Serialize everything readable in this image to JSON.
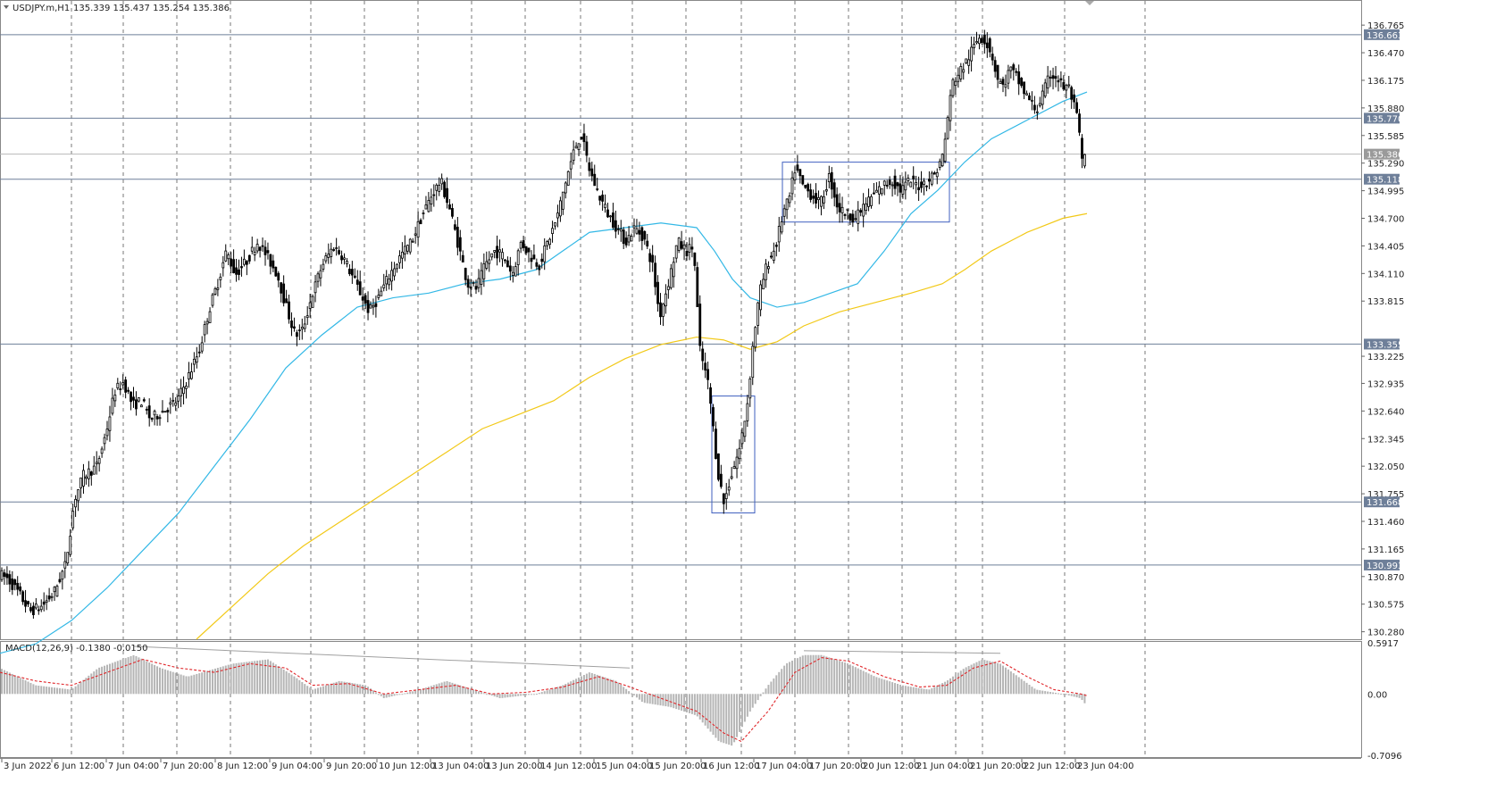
{
  "header": {
    "symbol": "USDJPY.m,H1",
    "ohlc": "135.339 135.437 135.254 135.386"
  },
  "macd_header": "MACD(12,26,9) -0.1380 -0.0150",
  "chart_data": {
    "type": "candlestick",
    "timeframe": "H1",
    "price_axis": {
      "range": [
        130.2,
        136.9
      ],
      "ticks": [
        "136.765",
        "136.470",
        "136.175",
        "135.880",
        "135.585",
        "135.290",
        "134.995",
        "134.700",
        "134.405",
        "134.110",
        "133.815",
        "133.225",
        "132.935",
        "132.640",
        "132.345",
        "132.050",
        "131.755",
        "131.460",
        "131.165",
        "130.870",
        "130.575",
        "130.280"
      ]
    },
    "time_labels": [
      "3 Jun 2022",
      "6 Jun 12:00",
      "7 Jun 04:00",
      "7 Jun 20:00",
      "8 Jun 12:00",
      "9 Jun 04:00",
      "9 Jun 20:00",
      "10 Jun 12:00",
      "13 Jun 04:00",
      "13 Jun 20:00",
      "14 Jun 12:00",
      "15 Jun 04:00",
      "15 Jun 20:00",
      "16 Jun 12:00",
      "17 Jun 04:00",
      "17 Jun 20:00",
      "20 Jun 12:00",
      "21 Jun 04:00",
      "21 Jun 20:00",
      "22 Jun 12:00",
      "23 Jun 04:00"
    ],
    "levels": [
      {
        "price": 136.663,
        "label": "136.663"
      },
      {
        "price": 135.77,
        "label": "135.770"
      },
      {
        "price": 135.118,
        "label": "135.118"
      },
      {
        "price": 133.355,
        "label": "133.355"
      },
      {
        "price": 131.668,
        "label": "131.668"
      },
      {
        "price": 130.993,
        "label": "130.993"
      }
    ],
    "current_price": {
      "price": 135.386,
      "label": "135.386"
    },
    "path_points": [
      [
        0,
        130.9
      ],
      [
        10,
        130.85
      ],
      [
        22,
        130.7
      ],
      [
        35,
        130.5
      ],
      [
        48,
        130.55
      ],
      [
        62,
        130.7
      ],
      [
        75,
        131.0
      ],
      [
        85,
        131.7
      ],
      [
        95,
        131.95
      ],
      [
        110,
        132.05
      ],
      [
        120,
        132.4
      ],
      [
        130,
        132.85
      ],
      [
        140,
        132.95
      ],
      [
        150,
        132.7
      ],
      [
        160,
        132.75
      ],
      [
        170,
        132.55
      ],
      [
        185,
        132.65
      ],
      [
        200,
        132.75
      ],
      [
        212,
        133.0
      ],
      [
        225,
        133.3
      ],
      [
        235,
        133.7
      ],
      [
        245,
        134.0
      ],
      [
        255,
        134.35
      ],
      [
        265,
        134.1
      ],
      [
        278,
        134.25
      ],
      [
        290,
        134.45
      ],
      [
        300,
        134.3
      ],
      [
        312,
        134.1
      ],
      [
        322,
        133.75
      ],
      [
        332,
        133.45
      ],
      [
        340,
        133.5
      ],
      [
        350,
        133.85
      ],
      [
        362,
        134.2
      ],
      [
        375,
        134.4
      ],
      [
        385,
        134.3
      ],
      [
        395,
        134.1
      ],
      [
        405,
        133.9
      ],
      [
        415,
        133.7
      ],
      [
        425,
        133.85
      ],
      [
        438,
        134.1
      ],
      [
        450,
        134.3
      ],
      [
        462,
        134.45
      ],
      [
        475,
        134.75
      ],
      [
        485,
        134.95
      ],
      [
        495,
        135.1
      ],
      [
        505,
        134.8
      ],
      [
        515,
        134.4
      ],
      [
        525,
        134.0
      ],
      [
        535,
        133.95
      ],
      [
        545,
        134.2
      ],
      [
        555,
        134.35
      ],
      [
        565,
        134.3
      ],
      [
        575,
        134.1
      ],
      [
        585,
        134.45
      ],
      [
        595,
        134.3
      ],
      [
        605,
        134.2
      ],
      [
        615,
        134.45
      ],
      [
        625,
        134.7
      ],
      [
        635,
        135.1
      ],
      [
        645,
        135.45
      ],
      [
        652,
        135.6
      ],
      [
        662,
        135.2
      ],
      [
        672,
        134.95
      ],
      [
        682,
        134.75
      ],
      [
        692,
        134.6
      ],
      [
        702,
        134.45
      ],
      [
        712,
        134.6
      ],
      [
        722,
        134.5
      ],
      [
        732,
        134.2
      ],
      [
        740,
        133.65
      ],
      [
        752,
        134.1
      ],
      [
        760,
        134.45
      ],
      [
        770,
        134.35
      ],
      [
        778,
        134.4
      ],
      [
        785,
        133.3
      ],
      [
        795,
        132.9
      ],
      [
        805,
        132.0
      ],
      [
        812,
        131.65
      ],
      [
        820,
        131.95
      ],
      [
        830,
        132.25
      ],
      [
        838,
        132.7
      ],
      [
        845,
        133.4
      ],
      [
        852,
        133.9
      ],
      [
        860,
        134.2
      ],
      [
        870,
        134.4
      ],
      [
        878,
        134.75
      ],
      [
        885,
        134.9
      ],
      [
        892,
        135.25
      ],
      [
        900,
        135.05
      ],
      [
        910,
        134.95
      ],
      [
        920,
        134.85
      ],
      [
        930,
        135.15
      ],
      [
        940,
        134.8
      ],
      [
        950,
        134.75
      ],
      [
        960,
        134.7
      ],
      [
        970,
        134.85
      ],
      [
        980,
        134.95
      ],
      [
        990,
        135.05
      ],
      [
        1000,
        135.1
      ],
      [
        1010,
        135.0
      ],
      [
        1020,
        135.1
      ],
      [
        1030,
        135.05
      ],
      [
        1040,
        135.1
      ],
      [
        1050,
        135.2
      ],
      [
        1058,
        135.4
      ],
      [
        1062,
        135.75
      ],
      [
        1068,
        136.15
      ],
      [
        1075,
        136.25
      ],
      [
        1082,
        136.35
      ],
      [
        1090,
        136.5
      ],
      [
        1098,
        136.65
      ],
      [
        1105,
        136.6
      ],
      [
        1112,
        136.45
      ],
      [
        1118,
        136.2
      ],
      [
        1125,
        136.1
      ],
      [
        1132,
        136.3
      ],
      [
        1140,
        136.2
      ],
      [
        1148,
        136.05
      ],
      [
        1155,
        135.95
      ],
      [
        1162,
        135.85
      ],
      [
        1170,
        136.05
      ],
      [
        1178,
        136.25
      ],
      [
        1185,
        136.2
      ],
      [
        1192,
        136.1
      ],
      [
        1198,
        136.1
      ],
      [
        1204,
        135.9
      ],
      [
        1209,
        135.7
      ],
      [
        1213,
        135.3
      ],
      [
        1217,
        135.4
      ]
    ],
    "ma_fast_points": [
      [
        0,
        130.05
      ],
      [
        40,
        130.15
      ],
      [
        80,
        130.4
      ],
      [
        120,
        130.75
      ],
      [
        160,
        131.15
      ],
      [
        200,
        131.55
      ],
      [
        240,
        132.05
      ],
      [
        280,
        132.55
      ],
      [
        320,
        133.1
      ],
      [
        360,
        133.45
      ],
      [
        400,
        133.75
      ],
      [
        440,
        133.85
      ],
      [
        480,
        133.9
      ],
      [
        520,
        134.0
      ],
      [
        560,
        134.05
      ],
      [
        600,
        134.15
      ],
      [
        630,
        134.35
      ],
      [
        660,
        134.55
      ],
      [
        700,
        134.6
      ],
      [
        740,
        134.65
      ],
      [
        780,
        134.6
      ],
      [
        800,
        134.35
      ],
      [
        820,
        134.05
      ],
      [
        840,
        133.85
      ],
      [
        870,
        133.75
      ],
      [
        900,
        133.8
      ],
      [
        930,
        133.9
      ],
      [
        960,
        134.0
      ],
      [
        990,
        134.35
      ],
      [
        1020,
        134.75
      ],
      [
        1050,
        135.0
      ],
      [
        1080,
        135.3
      ],
      [
        1110,
        135.55
      ],
      [
        1150,
        135.75
      ],
      [
        1190,
        135.95
      ],
      [
        1217,
        136.05
      ]
    ],
    "ma_slow_points": [
      [
        220,
        130.2
      ],
      [
        260,
        130.55
      ],
      [
        300,
        130.9
      ],
      [
        340,
        131.2
      ],
      [
        380,
        131.45
      ],
      [
        420,
        131.7
      ],
      [
        460,
        131.95
      ],
      [
        500,
        132.2
      ],
      [
        540,
        132.45
      ],
      [
        580,
        132.6
      ],
      [
        620,
        132.75
      ],
      [
        660,
        133.0
      ],
      [
        700,
        133.2
      ],
      [
        740,
        133.35
      ],
      [
        780,
        133.43
      ],
      [
        810,
        133.4
      ],
      [
        840,
        133.3
      ],
      [
        870,
        133.38
      ],
      [
        900,
        133.55
      ],
      [
        940,
        133.7
      ],
      [
        980,
        133.8
      ],
      [
        1020,
        133.9
      ],
      [
        1055,
        134.0
      ],
      [
        1080,
        134.15
      ],
      [
        1110,
        134.35
      ],
      [
        1150,
        134.55
      ],
      [
        1190,
        134.7
      ],
      [
        1217,
        134.75
      ]
    ],
    "rectangles": [
      {
        "x1": 876,
        "x2": 1063,
        "p1": 135.3,
        "p2": 134.66
      },
      {
        "x1": 797,
        "x2": 845,
        "p1": 132.8,
        "p2": 131.55
      }
    ],
    "macd": {
      "range": [
        -0.7096,
        0.5917
      ],
      "ticks": [
        "0.5917",
        "0.00",
        "-0.7096"
      ],
      "points": [
        [
          0,
          0.3
        ],
        [
          40,
          0.1
        ],
        [
          80,
          0.05
        ],
        [
          110,
          0.3
        ],
        [
          150,
          0.45
        ],
        [
          180,
          0.3
        ],
        [
          210,
          0.2
        ],
        [
          260,
          0.35
        ],
        [
          300,
          0.4
        ],
        [
          330,
          0.2
        ],
        [
          350,
          0.05
        ],
        [
          380,
          0.15
        ],
        [
          410,
          0.1
        ],
        [
          430,
          -0.05
        ],
        [
          470,
          0.05
        ],
        [
          500,
          0.15
        ],
        [
          530,
          0.05
        ],
        [
          560,
          -0.05
        ],
        [
          600,
          0.0
        ],
        [
          630,
          0.1
        ],
        [
          660,
          0.25
        ],
        [
          690,
          0.15
        ],
        [
          720,
          -0.1
        ],
        [
          750,
          -0.15
        ],
        [
          780,
          -0.25
        ],
        [
          805,
          -0.55
        ],
        [
          820,
          -0.6
        ],
        [
          840,
          -0.2
        ],
        [
          860,
          0.1
        ],
        [
          880,
          0.35
        ],
        [
          900,
          0.45
        ],
        [
          920,
          0.45
        ],
        [
          950,
          0.35
        ],
        [
          980,
          0.2
        ],
        [
          1010,
          0.1
        ],
        [
          1040,
          0.05
        ],
        [
          1060,
          0.15
        ],
        [
          1080,
          0.3
        ],
        [
          1100,
          0.4
        ],
        [
          1120,
          0.35
        ],
        [
          1140,
          0.2
        ],
        [
          1160,
          0.05
        ],
        [
          1190,
          0.0
        ],
        [
          1210,
          -0.05
        ],
        [
          1217,
          -0.14
        ]
      ],
      "signal_points": [
        [
          0,
          0.25
        ],
        [
          40,
          0.15
        ],
        [
          80,
          0.1
        ],
        [
          120,
          0.25
        ],
        [
          160,
          0.4
        ],
        [
          200,
          0.3
        ],
        [
          240,
          0.25
        ],
        [
          280,
          0.35
        ],
        [
          320,
          0.3
        ],
        [
          350,
          0.1
        ],
        [
          390,
          0.12
        ],
        [
          430,
          0.0
        ],
        [
          470,
          0.05
        ],
        [
          510,
          0.1
        ],
        [
          550,
          0.0
        ],
        [
          590,
          0.02
        ],
        [
          630,
          0.08
        ],
        [
          670,
          0.2
        ],
        [
          700,
          0.1
        ],
        [
          740,
          -0.05
        ],
        [
          780,
          -0.2
        ],
        [
          810,
          -0.45
        ],
        [
          830,
          -0.55
        ],
        [
          860,
          -0.2
        ],
        [
          890,
          0.25
        ],
        [
          920,
          0.42
        ],
        [
          950,
          0.38
        ],
        [
          990,
          0.2
        ],
        [
          1030,
          0.08
        ],
        [
          1060,
          0.1
        ],
        [
          1090,
          0.3
        ],
        [
          1120,
          0.38
        ],
        [
          1150,
          0.2
        ],
        [
          1180,
          0.05
        ],
        [
          1210,
          0.0
        ],
        [
          1217,
          -0.02
        ]
      ]
    }
  }
}
